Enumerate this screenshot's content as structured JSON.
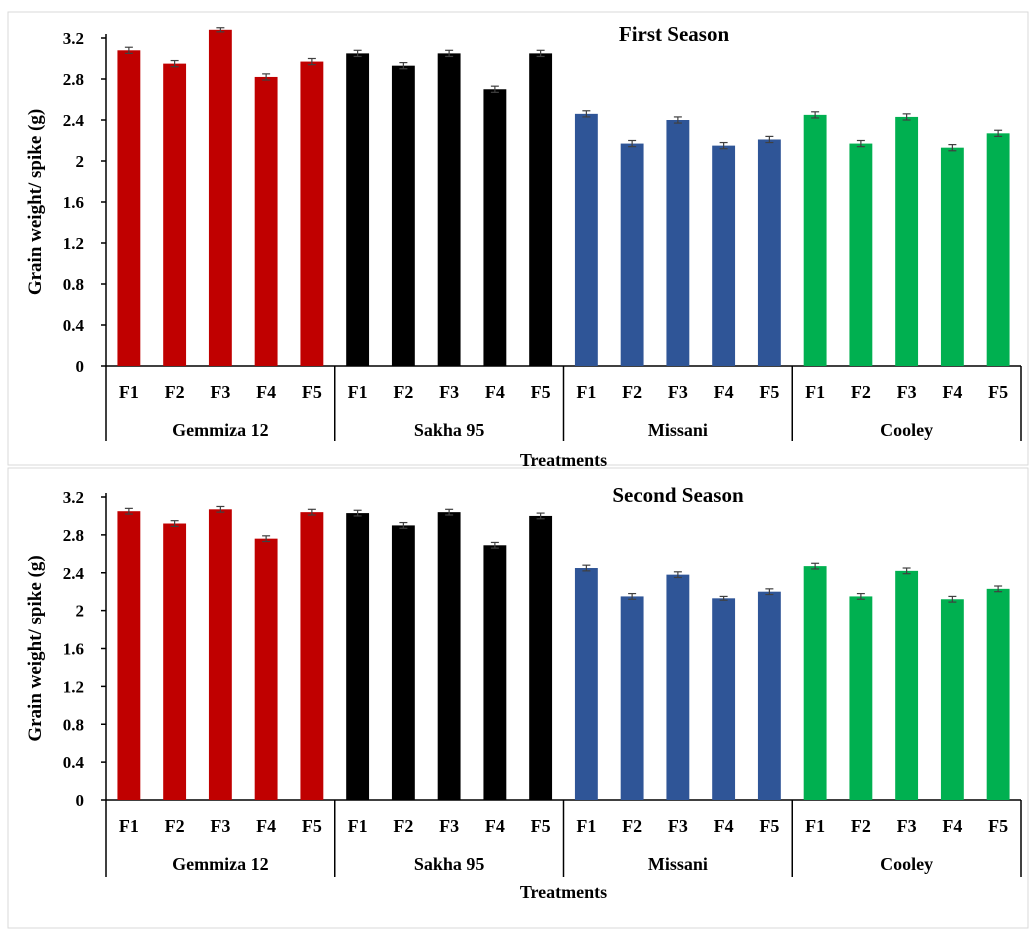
{
  "chart_data": [
    {
      "type": "bar",
      "title": "First Season",
      "ylabel": "Grain weight/ spike (g)",
      "xlabel": "Treatments",
      "ylim": [
        0,
        3.2
      ],
      "yticks": [
        "0",
        "0.4",
        "0.8",
        "1.2",
        "1.6",
        "2",
        "2.4",
        "2.8",
        "3.2"
      ],
      "groups": [
        {
          "name": "Gemmiza 12",
          "color": "#c00000",
          "categories": [
            "F1",
            "F2",
            "F3",
            "F4",
            "F5"
          ],
          "values": [
            3.08,
            2.95,
            3.28,
            2.82,
            2.97
          ],
          "errors": [
            0.03,
            0.03,
            0.02,
            0.03,
            0.03
          ]
        },
        {
          "name": "Sakha 95",
          "color": "#000000",
          "categories": [
            "F1",
            "F2",
            "F3",
            "F4",
            "F5"
          ],
          "values": [
            3.05,
            2.93,
            3.05,
            2.7,
            3.05
          ],
          "errors": [
            0.03,
            0.03,
            0.03,
            0.03,
            0.03
          ]
        },
        {
          "name": "Missani",
          "color": "#2f5597",
          "categories": [
            "F1",
            "F2",
            "F3",
            "F4",
            "F5"
          ],
          "values": [
            2.46,
            2.17,
            2.4,
            2.15,
            2.21
          ],
          "errors": [
            0.03,
            0.03,
            0.03,
            0.03,
            0.03
          ]
        },
        {
          "name": "Cooley",
          "color": "#00b050",
          "categories": [
            "F1",
            "F2",
            "F3",
            "F4",
            "F5"
          ],
          "values": [
            2.45,
            2.17,
            2.43,
            2.13,
            2.27
          ],
          "errors": [
            0.03,
            0.03,
            0.03,
            0.03,
            0.03
          ]
        }
      ]
    },
    {
      "type": "bar",
      "title": "Second Season",
      "ylabel": "Grain weight/ spike (g)",
      "xlabel": "Treatments",
      "ylim": [
        0,
        3.2
      ],
      "yticks": [
        "0",
        "0.4",
        "0.8",
        "1.2",
        "1.6",
        "2",
        "2.4",
        "2.8",
        "3.2"
      ],
      "groups": [
        {
          "name": "Gemmiza 12",
          "color": "#c00000",
          "categories": [
            "F1",
            "F2",
            "F3",
            "F4",
            "F5"
          ],
          "values": [
            3.05,
            2.92,
            3.07,
            2.76,
            3.04
          ],
          "errors": [
            0.03,
            0.03,
            0.03,
            0.03,
            0.03
          ]
        },
        {
          "name": "Sakha 95",
          "color": "#000000",
          "categories": [
            "F1",
            "F2",
            "F3",
            "F4",
            "F5"
          ],
          "values": [
            3.03,
            2.9,
            3.04,
            2.69,
            3.0
          ],
          "errors": [
            0.03,
            0.03,
            0.03,
            0.03,
            0.03
          ]
        },
        {
          "name": "Missani",
          "color": "#2f5597",
          "categories": [
            "F1",
            "F2",
            "F3",
            "F4",
            "F5"
          ],
          "values": [
            2.45,
            2.15,
            2.38,
            2.13,
            2.2
          ],
          "errors": [
            0.03,
            0.03,
            0.03,
            0.02,
            0.03
          ]
        },
        {
          "name": "Cooley",
          "color": "#00b050",
          "categories": [
            "F1",
            "F2",
            "F3",
            "F4",
            "F5"
          ],
          "values": [
            2.47,
            2.15,
            2.42,
            2.12,
            2.23
          ],
          "errors": [
            0.03,
            0.03,
            0.03,
            0.03,
            0.03
          ]
        }
      ]
    }
  ]
}
